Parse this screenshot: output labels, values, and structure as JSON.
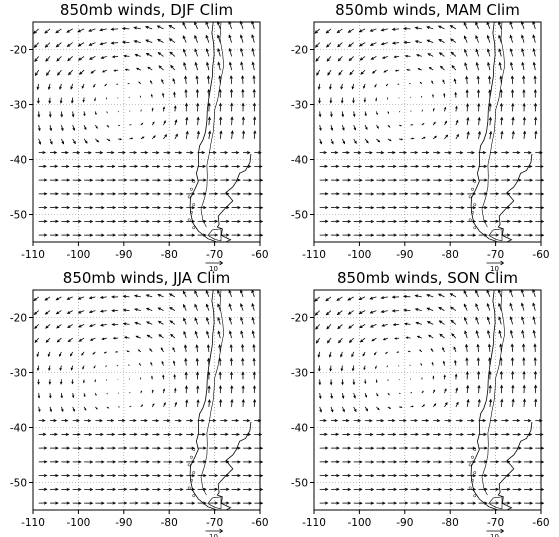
{
  "panels": [
    {
      "title": "850mb winds, DJF Clim",
      "season": "DJF"
    },
    {
      "title": "850mb winds, MAM Clim",
      "season": "MAM"
    },
    {
      "title": "850mb winds, JJA Clim",
      "season": "JJA"
    },
    {
      "title": "850mb winds, SON Clim",
      "season": "SON"
    }
  ],
  "axes": {
    "x_ticks": [
      "-110",
      "-100",
      "-90",
      "-80",
      "-70",
      "-60"
    ],
    "y_ticks": [
      "-20",
      "-30",
      "-40",
      "-50"
    ],
    "lon_range": [
      -110,
      -60
    ],
    "lat_range": [
      -55,
      -15
    ],
    "gridlines": "dotted",
    "grid_spacing_deg": 10
  },
  "reference_vector": {
    "label": "10"
  },
  "colors": {
    "line": "#000000",
    "grid": "#888888",
    "background": "#ffffff"
  },
  "wind_field": {
    "grid_spacing_deg": 2.5,
    "description_free": true
  }
}
